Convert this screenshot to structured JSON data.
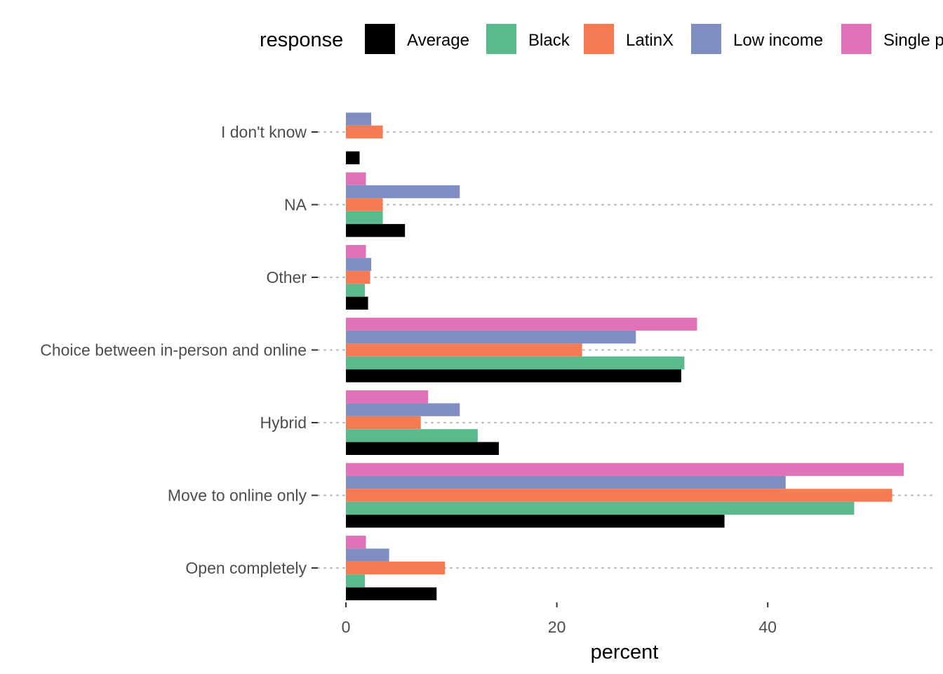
{
  "chart_data": {
    "type": "bar",
    "orientation": "horizontal",
    "categories": [
      "I don't know",
      "NA",
      "Other",
      "Choice between in-person and online",
      "Hybrid",
      "Move to online only",
      "Open completely"
    ],
    "series": [
      {
        "name": "Average",
        "color": "#000000",
        "values": [
          1.3,
          5.6,
          2.1,
          31.8,
          14.5,
          35.9,
          8.6
        ]
      },
      {
        "name": "Black",
        "color": "#5BB98E",
        "values": [
          null,
          3.5,
          1.8,
          32.1,
          12.5,
          48.2,
          1.8
        ]
      },
      {
        "name": "LatinX",
        "color": "#F67A52",
        "values": [
          3.5,
          3.5,
          2.3,
          22.4,
          7.1,
          51.8,
          9.4
        ]
      },
      {
        "name": "Low income",
        "color": "#7F8DC0",
        "values": [
          2.4,
          10.8,
          2.4,
          27.5,
          10.8,
          41.7,
          4.1
        ]
      },
      {
        "name": "Single p",
        "color": "#E073B7",
        "values": [
          null,
          1.9,
          1.9,
          33.3,
          7.8,
          52.9,
          1.9
        ]
      }
    ],
    "legend_title": "response",
    "legend_position": "top",
    "xlabel": "percent",
    "ylabel": "",
    "xlim": [
      0,
      55
    ],
    "xticks": [
      0,
      20,
      40
    ],
    "grid": "dotted horizontal lines at categories"
  }
}
